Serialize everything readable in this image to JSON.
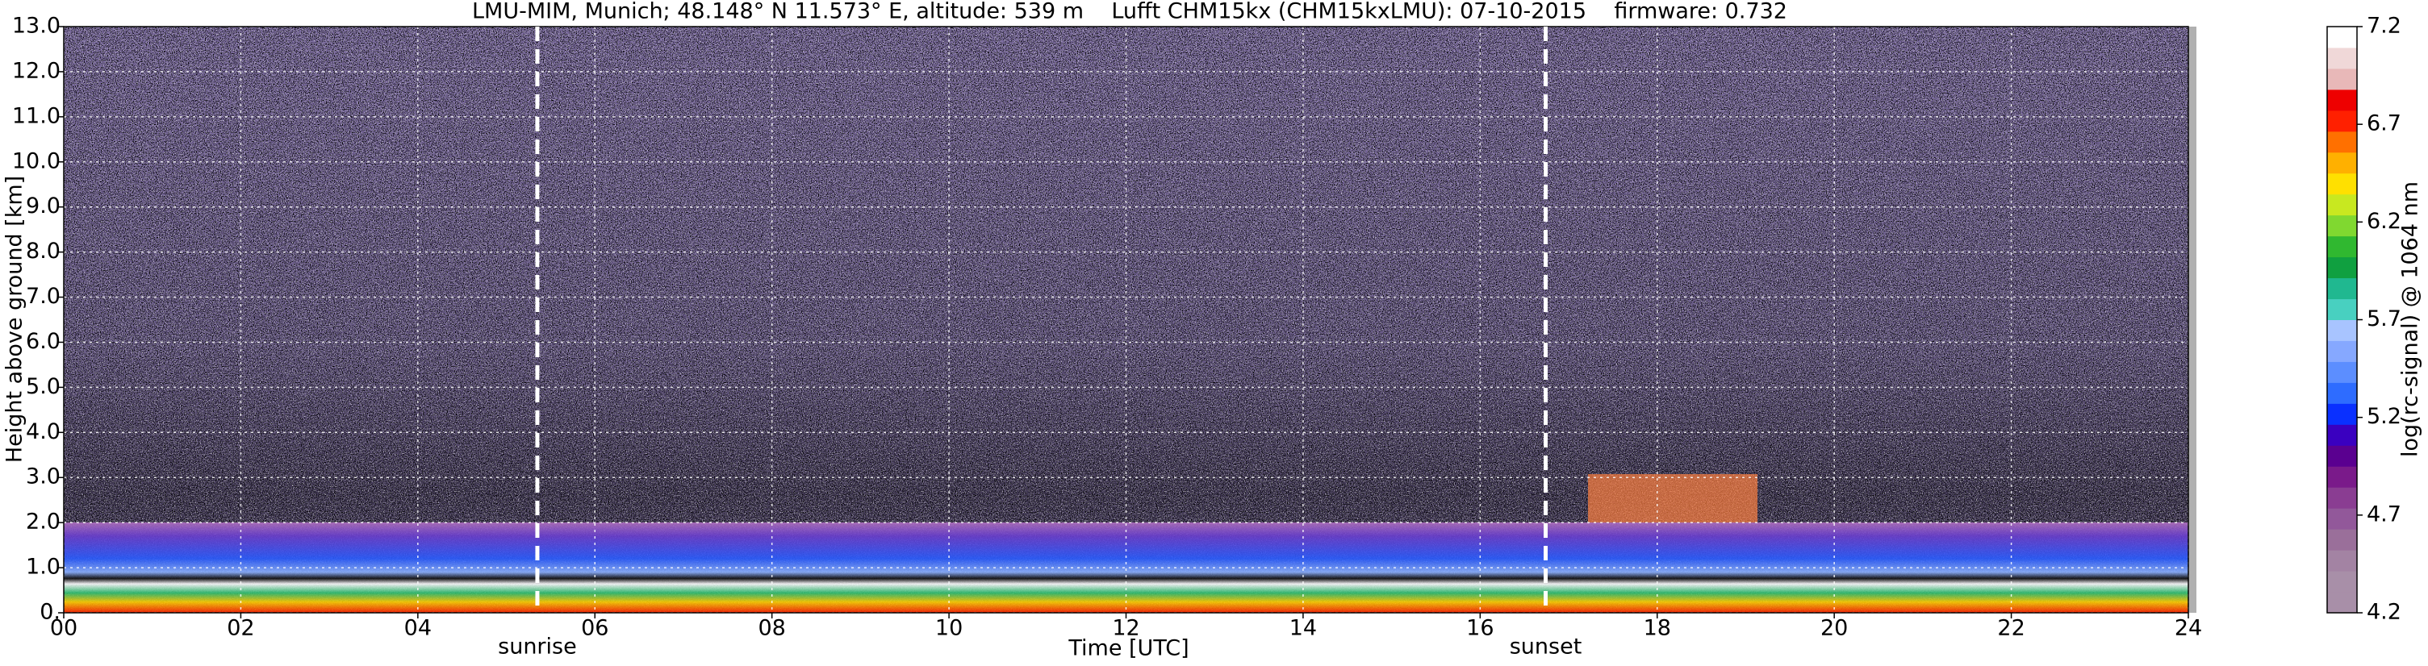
{
  "chart_data": {
    "type": "heatmap",
    "title": "LMU-MIM, Munich; 48.148° N 11.573° E, altitude: 539 m    Lufft CHM15kx (CHM15kxLMU): 07-10-2015    firmware: 0.732",
    "x_label": "Time [UTC]",
    "y_label": "Height above ground [km]",
    "xlim": [
      0,
      24
    ],
    "xticks": [
      {
        "value": 0,
        "label": "00"
      },
      {
        "value": 2,
        "label": "02"
      },
      {
        "value": 4,
        "label": "04"
      },
      {
        "value": 6,
        "label": "06"
      },
      {
        "value": 8,
        "label": "08"
      },
      {
        "value": 10,
        "label": "10"
      },
      {
        "value": 12,
        "label": "12"
      },
      {
        "value": 14,
        "label": "14"
      },
      {
        "value": 16,
        "label": "16"
      },
      {
        "value": 18,
        "label": "18"
      },
      {
        "value": 20,
        "label": "20"
      },
      {
        "value": 22,
        "label": "22"
      },
      {
        "value": 24,
        "label": "24"
      }
    ],
    "ylim": [
      0,
      13
    ],
    "yticks": [
      {
        "value": 0,
        "label": "0."
      },
      {
        "value": 1,
        "label": "1.0"
      },
      {
        "value": 2,
        "label": "2.0"
      },
      {
        "value": 3,
        "label": "3.0"
      },
      {
        "value": 4,
        "label": "4.0"
      },
      {
        "value": 5,
        "label": "5.0"
      },
      {
        "value": 6,
        "label": "6.0"
      },
      {
        "value": 7,
        "label": "7.0"
      },
      {
        "value": 8,
        "label": "8.0"
      },
      {
        "value": 9,
        "label": "9.0"
      },
      {
        "value": 10,
        "label": "10.0"
      },
      {
        "value": 11,
        "label": "11.0"
      },
      {
        "value": 12,
        "label": "12.0"
      },
      {
        "value": 13,
        "label": "13.0"
      }
    ],
    "grid": true,
    "annotations": [
      {
        "text": "sunrise",
        "x": 5.35
      },
      {
        "text": "sunset",
        "x": 16.74
      }
    ],
    "colorbar": {
      "label": "log(rc-signal) @ 1064 nm",
      "lim": [
        4.2,
        7.2
      ],
      "ticks": [
        4.2,
        4.7,
        5.2,
        5.7,
        6.2,
        6.7,
        7.2
      ],
      "colors": [
        "#a88fa8",
        "#a88fa8",
        "#a383a3",
        "#9a6f9a",
        "#92589a",
        "#8a3d92",
        "#7a1a8a",
        "#5a0090",
        "#3a00c0",
        "#0a30ff",
        "#2e6cff",
        "#5c8eff",
        "#86a8ff",
        "#a8c4ff",
        "#48d0c0",
        "#20b890",
        "#10a040",
        "#30b830",
        "#80d830",
        "#c8e820",
        "#ffe000",
        "#ffb000",
        "#ff7000",
        "#ff2000",
        "#ee0000",
        "#e8b8b8",
        "#f0d8d8",
        "#ffffff"
      ]
    }
  }
}
